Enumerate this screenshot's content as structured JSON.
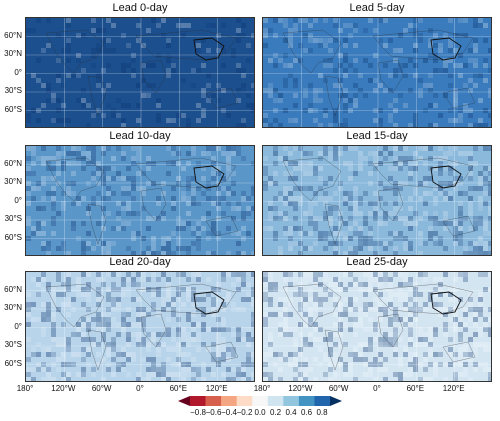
{
  "panels": [
    {
      "title": "Lead 0-day",
      "shade": "#1c4f8e",
      "noise": 0.18
    },
    {
      "title": "Lead 5-day",
      "shade": "#3a7bbd",
      "noise": 0.3
    },
    {
      "title": "Lead 10-day",
      "shade": "#5b96c9",
      "noise": 0.4
    },
    {
      "title": "Lead 15-day",
      "shade": "#8bb9dc",
      "noise": 0.45
    },
    {
      "title": "Lead 20-day",
      "shade": "#b8d4ea",
      "noise": 0.5
    },
    {
      "title": "Lead 25-day",
      "shade": "#d4e5f2",
      "noise": 0.5
    }
  ],
  "lat_labels": [
    "60°N",
    "30°N",
    "0°",
    "30°S",
    "60°S"
  ],
  "lon_labels": [
    "180°",
    "120°W",
    "60°W",
    "0°",
    "60°E",
    "120°E"
  ],
  "colorbar": {
    "ticks": [
      "−0.8",
      "−0.6",
      "−0.4",
      "−0.2",
      "0.0",
      "0.2",
      "0.4",
      "0.6",
      "0.8"
    ],
    "colors": [
      "#67001f",
      "#b2182b",
      "#d6604d",
      "#f4a582",
      "#fddbc7",
      "#f7f7f7",
      "#d1e5f0",
      "#92c5de",
      "#4393c3",
      "#2166ac",
      "#053061"
    ]
  }
}
